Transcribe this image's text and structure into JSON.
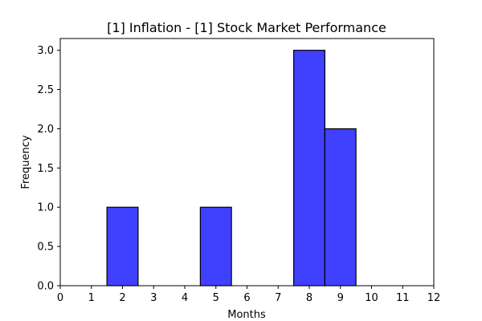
{
  "chart_data": {
    "type": "bar",
    "title": "[1] Inflation - [1] Stock Market Performance",
    "xlabel": "Months",
    "ylabel": "Frequency",
    "xlim": [
      0,
      12
    ],
    "ylim": [
      0,
      3.15
    ],
    "x_ticks": [
      0,
      1,
      2,
      3,
      4,
      5,
      6,
      7,
      8,
      9,
      10,
      11,
      12
    ],
    "y_ticks": [
      0.0,
      0.5,
      1.0,
      1.5,
      2.0,
      2.5,
      3.0
    ],
    "bar_width": 1,
    "bars": [
      {
        "x": 2,
        "value": 1
      },
      {
        "x": 5,
        "value": 1
      },
      {
        "x": 8,
        "value": 3
      },
      {
        "x": 9,
        "value": 2
      }
    ],
    "bar_color": "#4040ff",
    "edge_color": "#000000",
    "grid": false,
    "legend": "none"
  }
}
